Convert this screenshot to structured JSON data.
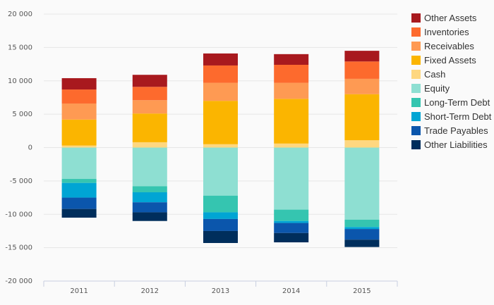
{
  "chart_data": {
    "type": "bar",
    "stacked": true,
    "categories": [
      "2011",
      "2012",
      "2013",
      "2014",
      "2015"
    ],
    "ylim": [
      -20000,
      20000
    ],
    "yticks": [
      20000,
      15000,
      10000,
      5000,
      0,
      -5000,
      -10000,
      -15000,
      -20000
    ],
    "ytick_labels": [
      "20 000",
      "15 000",
      "10 000",
      "5 000",
      "0",
      "-5 000",
      "-10 000",
      "-15 000",
      "-20 000"
    ],
    "grid": true,
    "legend_position": "right",
    "series": [
      {
        "name": "Other Assets",
        "color": "#a8191e",
        "values": [
          1700,
          1800,
          1800,
          1600,
          1600
        ]
      },
      {
        "name": "Inventories",
        "color": "#fd6a2d",
        "values": [
          2100,
          2000,
          2600,
          2700,
          2600
        ]
      },
      {
        "name": "Receivables",
        "color": "#fe9a53",
        "values": [
          2400,
          2000,
          2700,
          2400,
          2300
        ]
      },
      {
        "name": "Fixed Assets",
        "color": "#fbb500",
        "values": [
          3900,
          4300,
          6500,
          6700,
          6900
        ]
      },
      {
        "name": "Cash",
        "color": "#fed780",
        "values": [
          300,
          800,
          500,
          600,
          1100
        ]
      },
      {
        "name": "Equity",
        "color": "#8edfd2",
        "values": [
          -4700,
          -5800,
          -7200,
          -9300,
          -10800
        ]
      },
      {
        "name": "Long-Term Debt",
        "color": "#35c5b0",
        "values": [
          -600,
          -900,
          -2500,
          -1700,
          -1100
        ]
      },
      {
        "name": "Short-Term Debt",
        "color": "#00a5d4",
        "values": [
          -2200,
          -1500,
          -1000,
          -300,
          -300
        ]
      },
      {
        "name": "Trade Payables",
        "color": "#0b56ac",
        "values": [
          -1700,
          -1500,
          -1800,
          -1500,
          -1600
        ]
      },
      {
        "name": "Other Liabilities",
        "color": "#002e5c",
        "values": [
          -1300,
          -1300,
          -1800,
          -1400,
          -1100
        ]
      }
    ]
  }
}
